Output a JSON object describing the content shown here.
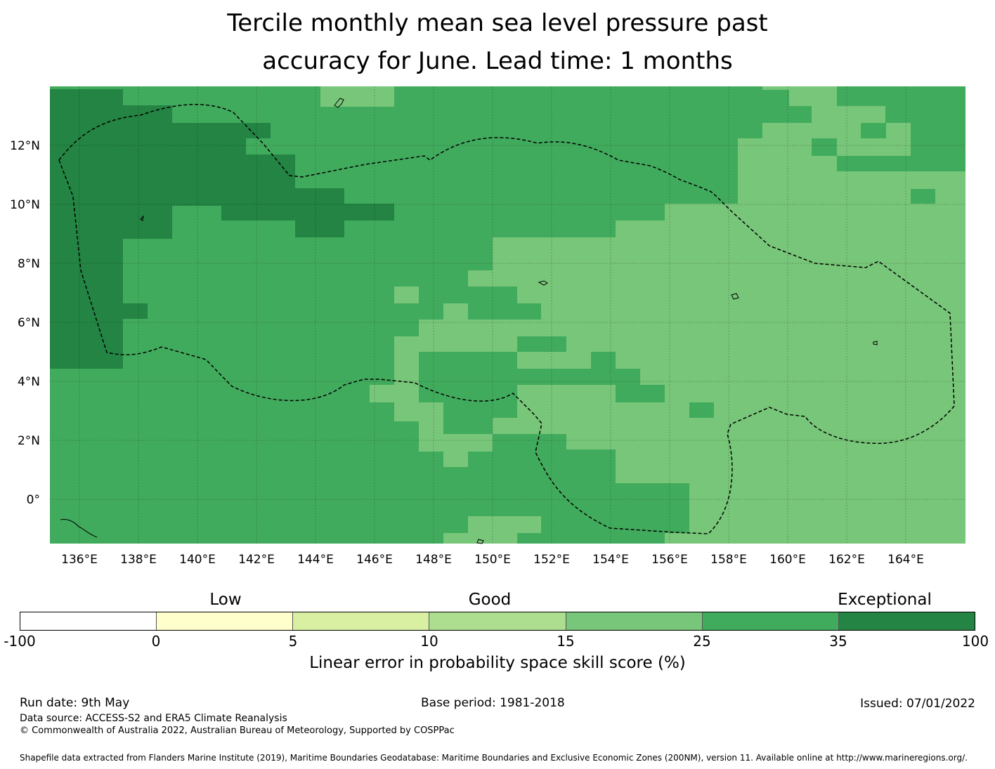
{
  "title": {
    "line1": "Tercile monthly mean sea level pressure past",
    "line2": "accuracy for June. Lead time: 1 months"
  },
  "map": {
    "lon_labels": [
      "136°E",
      "138°E",
      "140°E",
      "142°E",
      "144°E",
      "146°E",
      "148°E",
      "150°E",
      "152°E",
      "154°E",
      "156°E",
      "158°E",
      "160°E",
      "162°E",
      "164°E"
    ],
    "lat_labels": [
      "12°N",
      "10°N",
      "8°N",
      "6°N",
      "4°N",
      "2°N",
      "0°"
    ],
    "lon_values": [
      136,
      138,
      140,
      142,
      144,
      146,
      148,
      150,
      152,
      154,
      156,
      158,
      160,
      162,
      164
    ],
    "lat_values": [
      12,
      10,
      8,
      6,
      4,
      2,
      0
    ],
    "extent": {
      "lon": [
        135,
        166
      ],
      "lat": [
        -1.5,
        14
      ]
    },
    "eez_boundary_style": "dashed black",
    "colors": {
      "lt10": "#acdd8e",
      "15_25": "#78c679",
      "25_35": "#41ab5d",
      "35_100": "#238443"
    }
  },
  "colorbar": {
    "words": [
      "Low",
      "Good",
      "Exceptional"
    ],
    "ticks": [
      "-100",
      "0",
      "5",
      "10",
      "15",
      "25",
      "35",
      "100"
    ],
    "colors": [
      "#ffffff",
      "#ffffcc",
      "#d9f0a3",
      "#addd8e",
      "#78c679",
      "#41ab5d",
      "#238443"
    ],
    "label": "Linear error in probability space skill score (%)"
  },
  "footer": {
    "run_date": "Run date: 9th May",
    "base_period": "Base period: 1981-2018",
    "issued": "Issued: 07/01/2022",
    "data_source": "Data source: ACCESS-S2 and ERA5 Climate Reanalysis",
    "copyright": "© Commonwealth of Australia 2022, Australian Bureau of Meteorology, Supported by COSPPac",
    "shapefile": "Shapefile data extracted from Flanders Marine Institute (2019), Maritime Boundaries Geodatabase: Maritime Boundaries and Exclusive Economic Zones (200NM), version 11. Available online at http://www.marineregions.org/."
  }
}
